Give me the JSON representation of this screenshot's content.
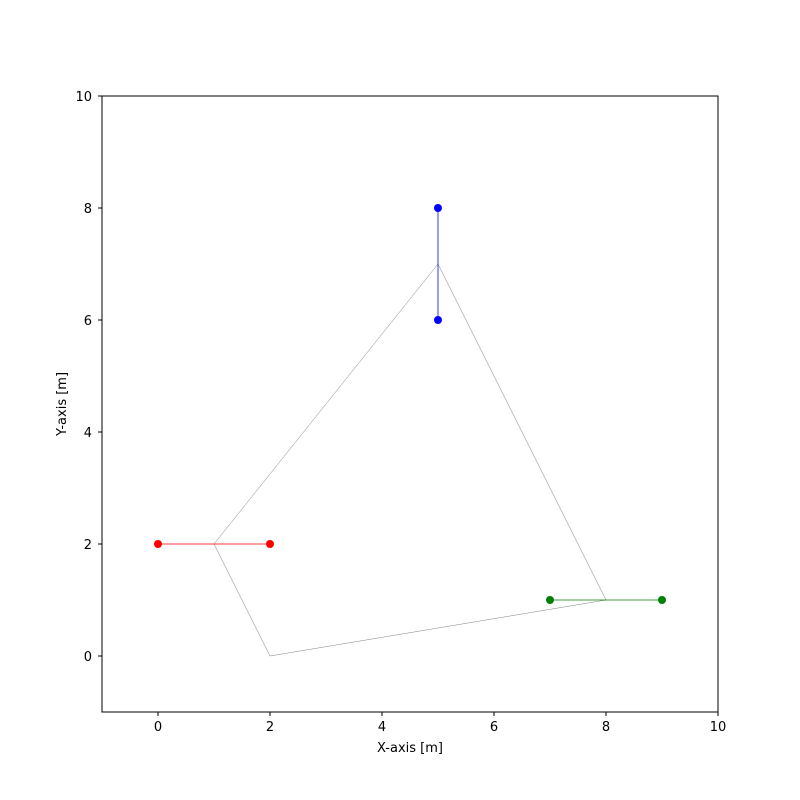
{
  "chart_data": {
    "type": "line",
    "title": "",
    "xlabel": "X-axis [m]",
    "ylabel": "Y-axis [m]",
    "xlim": [
      -1,
      10
    ],
    "ylim": [
      -1,
      10
    ],
    "xticks": [
      0,
      2,
      4,
      6,
      8,
      10
    ],
    "yticks": [
      0,
      2,
      4,
      6,
      8,
      10
    ],
    "grid": false,
    "legend": "none",
    "series": [
      {
        "color": "#808080",
        "marker": "none",
        "x": [
          1,
          2,
          8,
          5,
          1
        ],
        "y": [
          2,
          0,
          1,
          7,
          2
        ]
      },
      {
        "color": "#ff0000",
        "marker": "circle",
        "x": [
          0,
          2
        ],
        "y": [
          2,
          2
        ]
      },
      {
        "color": "#0000ff",
        "marker": "circle",
        "x": [
          5,
          5
        ],
        "y": [
          6,
          8
        ]
      },
      {
        "color": "#008000",
        "marker": "circle",
        "x": [
          7,
          9
        ],
        "y": [
          1,
          1
        ]
      }
    ]
  }
}
